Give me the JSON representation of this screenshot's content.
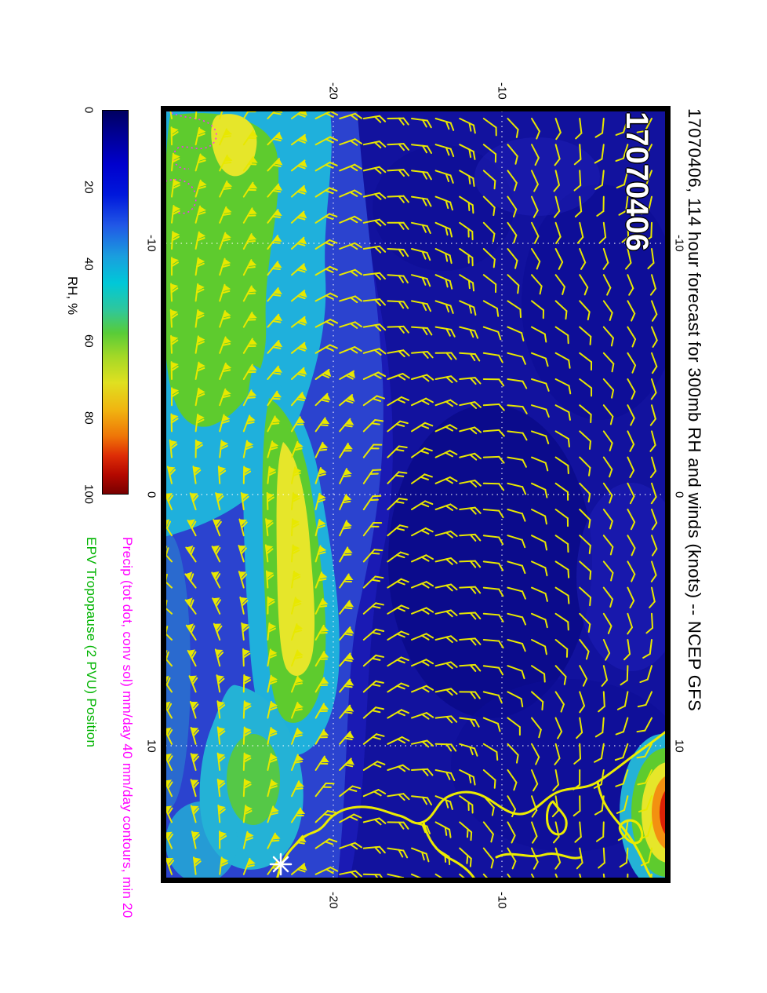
{
  "title": "17070406, 114 hour forecast for 300mb RH and winds (knots) -- NCEP GFS",
  "datestamp": "17070406",
  "colorbar": {
    "label": "RH, %",
    "ticks": [
      "0",
      "20",
      "40",
      "60",
      "80",
      "100"
    ]
  },
  "legends": {
    "precip": {
      "text": "Precip (tot dot, conv sol) mm/day 40 mm/day contours, min 20",
      "color": "#ff00ff"
    },
    "epv": {
      "text": "EPV Tropopause (2 PVU) Position",
      "color": "#00b400"
    }
  },
  "axes": {
    "top": [
      "-20",
      "-10"
    ],
    "bottom": [
      "-20",
      "-10"
    ],
    "left": [
      "-10",
      "0",
      "10"
    ],
    "right": [
      "-10",
      "0",
      "10"
    ]
  },
  "chart_data": {
    "type": "heatmap",
    "title": "17070406, 114 hour forecast for 300mb RH and winds (knots) -- NCEP GFS",
    "model": "NCEP GFS",
    "run": "17070406",
    "forecast_hour": 114,
    "field": "300mb relative humidity (%), filled contours, with 300mb wind barbs (knots)",
    "colorbar": {
      "label": "RH, %",
      "range": [
        0,
        100
      ],
      "ticks": [
        0,
        20,
        40,
        60,
        80,
        100
      ]
    },
    "lon_axis": {
      "ticks": [
        -20,
        -10
      ],
      "range_estimate": [
        -30,
        0
      ]
    },
    "lat_axis": {
      "ticks": [
        -10,
        0,
        10
      ],
      "range_estimate": [
        -15,
        15
      ]
    },
    "grid": "dotted graticule at 10-degree intervals",
    "legend_position": "left margin, rotated 90 degrees",
    "overlays": [
      {
        "name": "wind barbs (knots)",
        "color": "#e8e800"
      },
      {
        "name": "coastline (west Africa)",
        "color": "#e8e800"
      },
      {
        "name": "precip contours (tot dot, conv sol), 40 mm/day contours, min 20",
        "color": "#ff00ff",
        "style": "dotted"
      },
      {
        "name": "EPV tropopause (2 PVU) position",
        "color": "#00b400"
      },
      {
        "name": "station/marker asterisk",
        "color": "#ffffff"
      },
      {
        "name": "high RH maximum (dark red core) at lower-right coast",
        "value_estimate": 100
      }
    ]
  }
}
